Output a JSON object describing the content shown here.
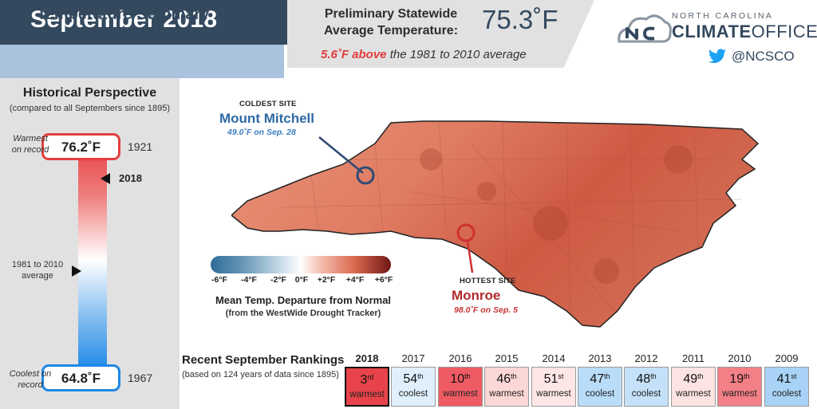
{
  "header": {
    "month": "September 2018",
    "subtitle": "Temperature Summary",
    "stats_label_line1": "Preliminary Statewide",
    "stats_label_line2": "Average Temperature:",
    "stats_value": "75.3˚F",
    "anomaly_value": "5.6˚F above",
    "anomaly_rest": " the 1981 to 2010 average"
  },
  "logo": {
    "small_text": "NORTH CAROLINA",
    "big_text_bold": "CLIMATE",
    "big_text_rest": "OFFICE",
    "twitter_handle": "@NCSCO"
  },
  "historical": {
    "title": "Historical Perspective",
    "subtitle": "(compared to all Septembers since 1895)",
    "warmest_label_line1": "Warmest",
    "warmest_label_line2": "on record",
    "warmest_value": "76.2˚F",
    "warmest_year": "1921",
    "current_year": "2018",
    "average_label_line1": "1981 to 2010",
    "average_label_line2": "average",
    "coolest_label_line1": "Coolest on",
    "coolest_label_line2": "record",
    "coolest_value": "64.8˚F",
    "coolest_year": "1967"
  },
  "sites": {
    "coldest_label": "COLDEST SITE",
    "coldest_name": "Mount Mitchell",
    "coldest_detail": "49.0˚F on Sep. 28",
    "hottest_label": "HOTTEST SITE",
    "hottest_name": "Monroe",
    "hottest_detail": "98.0˚F on Sep. 5"
  },
  "legend": {
    "ticks": [
      "-6°F",
      "-4°F",
      "-2°F",
      "0°F",
      "+2°F",
      "+4°F",
      "+6°F"
    ],
    "title": "Mean Temp. Departure from Normal",
    "subtitle": "(from the WestWide Drought Tracker)"
  },
  "rankings": {
    "title": "Recent September Rankings",
    "subtitle": "(based on 124 years of data since 1895)",
    "items": [
      {
        "year": "2018",
        "rank": "3",
        "suffix": "rd",
        "word": "warmest",
        "color": "#e8434a"
      },
      {
        "year": "2017",
        "rank": "54",
        "suffix": "th",
        "word": "coolest",
        "color": "#dff0fc"
      },
      {
        "year": "2016",
        "rank": "10",
        "suffix": "th",
        "word": "warmest",
        "color": "#ef5b63"
      },
      {
        "year": "2015",
        "rank": "46",
        "suffix": "th",
        "word": "warmest",
        "color": "#fbd8d6"
      },
      {
        "year": "2014",
        "rank": "51",
        "suffix": "st",
        "word": "warmest",
        "color": "#fde6e5"
      },
      {
        "year": "2013",
        "rank": "47",
        "suffix": "th",
        "word": "coolest",
        "color": "#b9dcf8"
      },
      {
        "year": "2012",
        "rank": "48",
        "suffix": "th",
        "word": "coolest",
        "color": "#c4e1f9"
      },
      {
        "year": "2011",
        "rank": "49",
        "suffix": "th",
        "word": "warmest",
        "color": "#fde4e3"
      },
      {
        "year": "2010",
        "rank": "19",
        "suffix": "th",
        "word": "warmest",
        "color": "#f28086"
      },
      {
        "year": "2009",
        "rank": "41",
        "suffix": "st",
        "word": "coolest",
        "color": "#a8d3f6"
      }
    ]
  }
}
